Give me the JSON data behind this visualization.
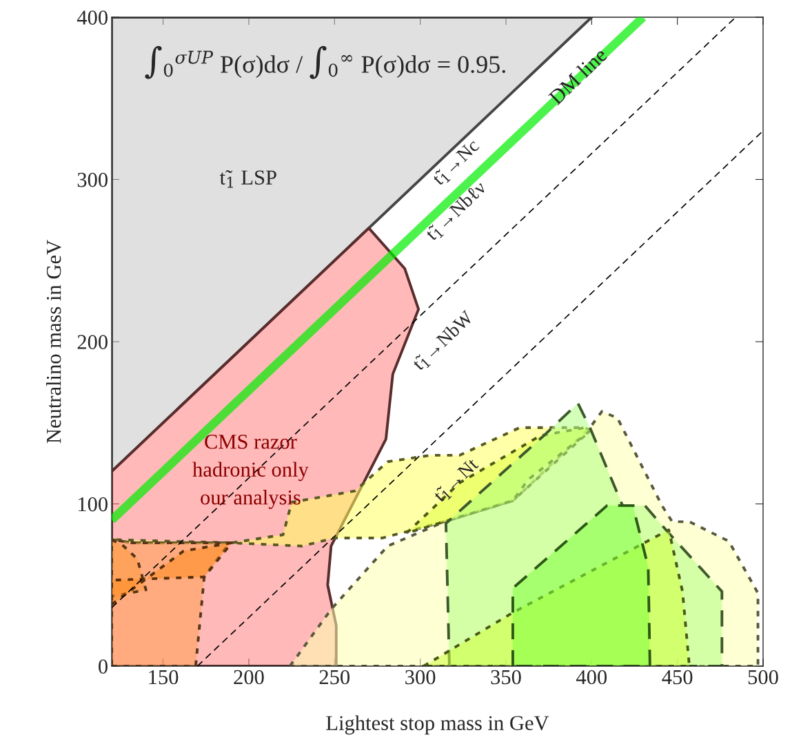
{
  "chart_data": {
    "type": "area",
    "xlabel": "Lightest stop mass in GeV",
    "ylabel": "Neutralino mass in GeV",
    "xlim": [
      120,
      500
    ],
    "ylim": [
      0,
      400
    ],
    "xticks": [
      150,
      200,
      250,
      300,
      350,
      400,
      450,
      500
    ],
    "yticks": [
      0,
      100,
      200,
      300,
      400
    ],
    "grid": false,
    "legend": false,
    "series": [
      {
        "color": "#c6c6c6",
        "line_style": "solid",
        "x": [
          120,
          400,
          120
        ],
        "values": [
          120,
          400,
          400
        ]
      },
      {
        "type": "line",
        "name": "DM line",
        "color": "#00ee00",
        "line_style": "solid",
        "x": [
          120,
          430
        ],
        "values": [
          90,
          400
        ]
      },
      {
        "color": "#ff8080",
        "line_style": "solid",
        "x": [
          120,
          251,
          251,
          246,
          248,
          280,
          284,
          299,
          291,
          270,
          120
        ],
        "values": [
          0,
          0,
          25,
          50,
          74,
          140,
          180,
          220,
          245,
          270,
          120
        ]
      },
      {
        "type": "line",
        "color": "#000000",
        "line_style": "dashed",
        "x": [
          120,
          484
        ],
        "values": [
          36,
          400
        ]
      },
      {
        "type": "line",
        "color": "#000000",
        "line_style": "dashed",
        "x": [
          170,
          500
        ],
        "values": [
          0,
          330
        ]
      },
      {
        "color": "#ffffb0",
        "line_style": "dotted",
        "x": [
          224,
          248,
          281,
          314,
          354,
          399,
          406,
          415,
          441,
          447,
          457,
          480,
          497,
          497
        ],
        "values": [
          0,
          35,
          74,
          89,
          102,
          147,
          157,
          153,
          99,
          89,
          89,
          77,
          45,
          0
        ]
      },
      {
        "color": "#ffff60",
        "line_style": "dotted",
        "x": [
          120,
          132,
          190,
          220,
          225,
          262,
          281,
          306,
          323,
          358,
          396,
          399,
          354,
          314,
          278,
          250,
          231,
          190,
          120
        ],
        "values": [
          78,
          76,
          76,
          81,
          101,
          108,
          126,
          130,
          130,
          147,
          147,
          145,
          102,
          89,
          79,
          79,
          74,
          76,
          78
        ]
      },
      {
        "color": "#ffa050",
        "line_style": "dotted",
        "x": [
          120,
          169,
          174,
          188,
          190,
          132,
          120
        ],
        "values": [
          0,
          0,
          55,
          75,
          76,
          76,
          78
        ]
      },
      {
        "color": "#ff9a40",
        "line_style": "dotted",
        "x": [
          120,
          127,
          135,
          140,
          120
        ],
        "values": [
          78,
          74,
          66,
          47,
          43
        ]
      },
      {
        "color": "#ff8c20",
        "line_style": "dotted",
        "x": [
          120,
          162,
          190,
          174,
          120
        ],
        "values": [
          38,
          71,
          76,
          55,
          53
        ]
      },
      {
        "color": "#e0ff40",
        "line_style": "dotted",
        "x": [
          292,
          323,
          370,
          396,
          399,
          363,
          354,
          314
        ],
        "values": [
          82,
          113,
          142,
          147,
          145,
          115,
          102,
          89
        ]
      },
      {
        "color": "#b0ff80",
        "line_style": "dashed",
        "x": [
          317,
          315,
          372,
          392,
          399,
          418,
          431,
          445,
          476,
          476
        ],
        "values": [
          0,
          88,
          142,
          162,
          147,
          99,
          99,
          82,
          46,
          0
        ]
      },
      {
        "color": "#d0ff40",
        "line_style": "dotted",
        "x": [
          302,
          354,
          445,
          453,
          457
        ],
        "values": [
          0,
          33,
          84,
          46,
          0
        ]
      },
      {
        "color": "#80ff40",
        "line_style": "dashed",
        "x": [
          354,
          354,
          409,
          424,
          433,
          434
        ],
        "values": [
          0,
          48,
          99,
          99,
          61,
          0
        ]
      }
    ],
    "annotations": [
      "∫$_{0}$$^{σUP}$ P(σ)dσ / ∫$_{0}$$^{∞}$ P(σ)dσ = 0.95.",
      "t̃$_{1}$ LSP",
      "t̃$_{1}$→Nc",
      "t̃$_{1}$→Nbℓν",
      "t̃$_{1}$→NbW",
      "t̃$_{1}$→Nt",
      {
        "text": "CMS razor\nhadronic only\nour analysis",
        "x": 201,
        "y": 120
      }
    ]
  }
}
